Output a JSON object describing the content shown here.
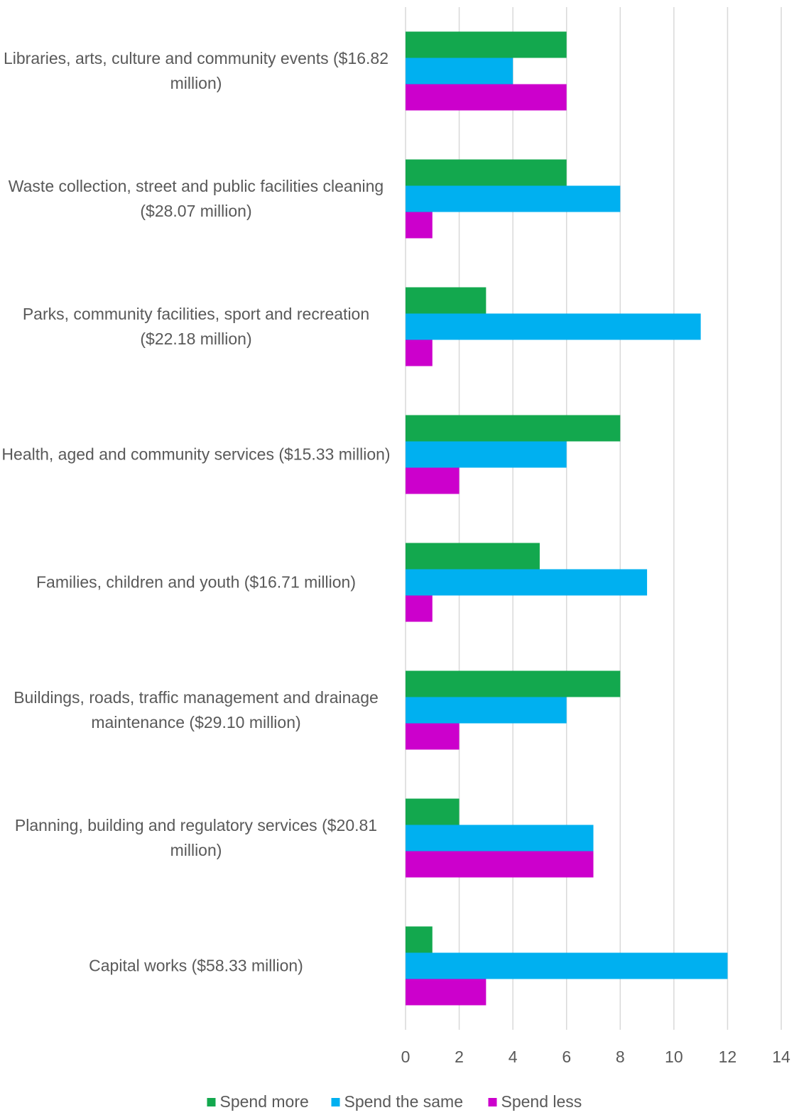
{
  "chart_data": {
    "type": "hbar",
    "categories": [
      "Libraries, arts, culture and community events ($16.82 million)",
      "Waste collection, street and public facilities cleaning ($28.07 million)",
      "Parks, community facilities, sport and recreation ($22.18 million)",
      "Health, aged and community services ($15.33 million)",
      "Families, children and youth ($16.71 million)",
      "Buildings, roads, traffic management and drainage maintenance ($29.10 million)",
      "Planning, building and regulatory services ($20.81 million)",
      "Capital works ($58.33 million)"
    ],
    "series": [
      {
        "name": "Spend more",
        "color": "#13a84e",
        "values": [
          6,
          6,
          3,
          8,
          5,
          8,
          2,
          1
        ]
      },
      {
        "name": "Spend the same",
        "color": "#00b0f0",
        "values": [
          4,
          8,
          11,
          6,
          9,
          6,
          7,
          12
        ]
      },
      {
        "name": "Spend less",
        "color": "#cc00cc",
        "values": [
          6,
          1,
          1,
          2,
          1,
          2,
          7,
          3
        ]
      }
    ],
    "xlim": [
      0,
      14
    ],
    "xticks": [
      0,
      2,
      4,
      6,
      8,
      10,
      12,
      14
    ],
    "grid": true,
    "legend": "bottom"
  }
}
